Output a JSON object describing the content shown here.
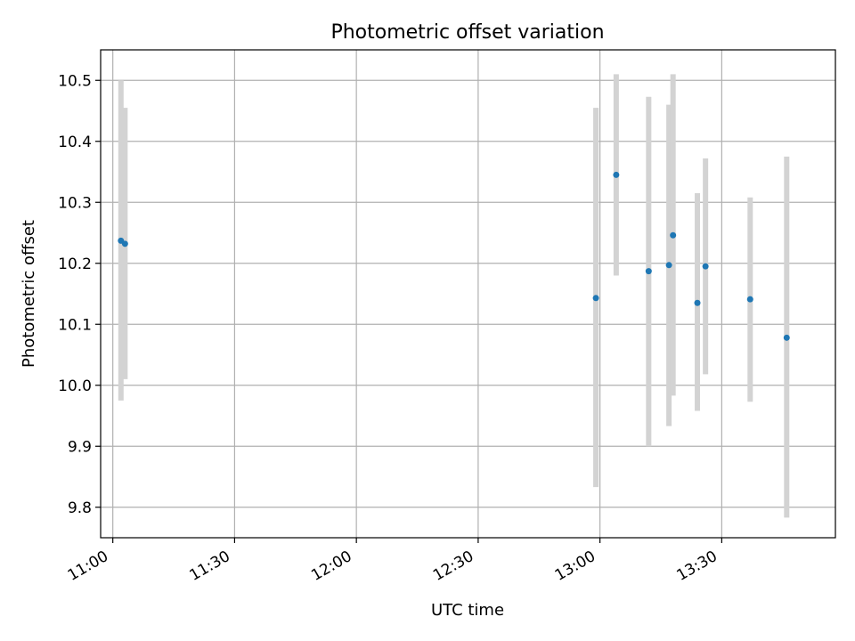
{
  "chart_data": {
    "type": "scatter",
    "title": "Photometric offset variation",
    "xlabel": "UTC time",
    "ylabel": "Photometric offset",
    "x_axis": {
      "type": "time",
      "range": [
        "10:57",
        "13:58"
      ],
      "ticks": [
        "11:00",
        "11:30",
        "12:00",
        "12:30",
        "13:00",
        "13:30"
      ]
    },
    "y_axis": {
      "range": [
        9.75,
        10.55
      ],
      "ticks": [
        9.8,
        9.9,
        10.0,
        10.1,
        10.2,
        10.3,
        10.4,
        10.5
      ],
      "tick_labels": [
        "9.8",
        "9.9",
        "10.0",
        "10.1",
        "10.2",
        "10.3",
        "10.4",
        "10.5"
      ]
    },
    "grid": true,
    "colors": {
      "point": "#1f77b4",
      "error_bar": "#d3d3d3"
    },
    "points": [
      {
        "x": "11:02",
        "y": 10.237,
        "err_low": 9.975,
        "err_high": 10.5
      },
      {
        "x": "11:03",
        "y": 10.232,
        "err_low": 10.01,
        "err_high": 10.455
      },
      {
        "x": "12:59",
        "y": 10.143,
        "err_low": 9.833,
        "err_high": 10.455
      },
      {
        "x": "13:04",
        "y": 10.345,
        "err_low": 10.18,
        "err_high": 10.51
      },
      {
        "x": "13:12",
        "y": 10.187,
        "err_low": 9.9,
        "err_high": 10.473
      },
      {
        "x": "13:17",
        "y": 10.197,
        "err_low": 9.933,
        "err_high": 10.46
      },
      {
        "x": "13:18",
        "y": 10.246,
        "err_low": 9.983,
        "err_high": 10.51
      },
      {
        "x": "13:24",
        "y": 10.135,
        "err_low": 9.958,
        "err_high": 10.315
      },
      {
        "x": "13:26",
        "y": 10.195,
        "err_low": 10.018,
        "err_high": 10.372
      },
      {
        "x": "13:37",
        "y": 10.141,
        "err_low": 9.973,
        "err_high": 10.308
      },
      {
        "x": "13:46",
        "y": 10.078,
        "err_low": 9.783,
        "err_high": 10.375
      }
    ]
  }
}
